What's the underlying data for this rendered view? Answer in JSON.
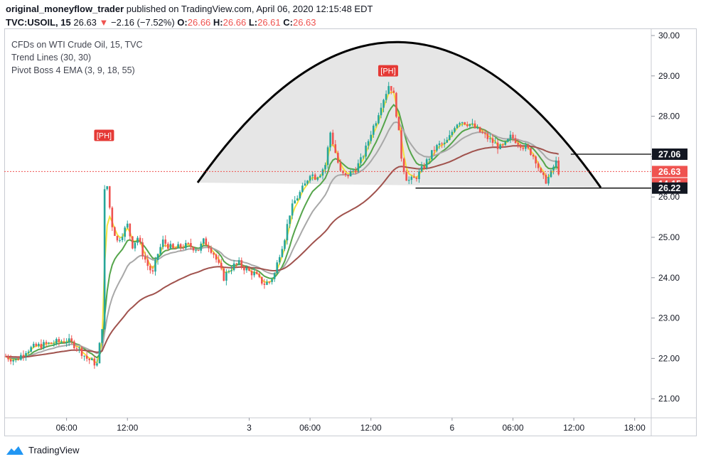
{
  "header": {
    "author": "original_moneyflow_trader",
    "published_text": "published on TradingView.com, April 06, 2020 12:15:48 EDT",
    "symbol": "TVC:USOIL, 15",
    "last": "26.63",
    "change_arrow": "▼",
    "change": "−2.16 (−7.52%)",
    "o_label": "O:",
    "o": "26.66",
    "h_label": "H:",
    "h": "26.66",
    "l_label": "L:",
    "l": "26.61",
    "c_label": "C:",
    "c": "26.63"
  },
  "legend": {
    "title": "CFDs on WTI Crude Oil, 15, TVC",
    "study1": "Trend Lines (30, 30)",
    "study2": "Pivot Boss 4 EMA (3, 9, 18, 55)"
  },
  "footer": {
    "brand": "TradingView"
  },
  "colors": {
    "up": "#26a69a",
    "down": "#ef5350",
    "ema3": "#f5e23b",
    "ema9": "#55a54b",
    "ema18": "#a8a8a8",
    "ema55": "#a0524d",
    "dome_fill": "#e6e6e6",
    "price_line": "#ef5350"
  },
  "chart_data": {
    "type": "candlestick",
    "title": "CFDs on WTI Crude Oil, 15, TVC",
    "ylim": [
      20.6,
      30.2
    ],
    "y_ticks": [
      "30.00",
      "29.00",
      "28.00",
      "27.00",
      "26.00",
      "25.00",
      "24.00",
      "23.00",
      "22.00",
      "21.00"
    ],
    "x_ticks": [
      "06:00",
      "12:00",
      "3",
      "06:00",
      "12:00",
      "6",
      "06:00",
      "12:00",
      "18:00"
    ],
    "x_tick_positions_hours": [
      6,
      12,
      24,
      30,
      36,
      44,
      50,
      56,
      62
    ],
    "price_labels": [
      {
        "text": "27.06",
        "value": 27.06,
        "style": "black"
      },
      {
        "text": "26.63",
        "value": 26.63,
        "style": "red"
      },
      {
        "text": "14:15",
        "value": 26.33,
        "style": "red"
      },
      {
        "text": "26.22",
        "value": 26.22,
        "style": "black"
      }
    ],
    "pivot_labels": [
      {
        "text": "[PH]",
        "hour": 9.7,
        "value": 27.35
      },
      {
        "text": "[PH]",
        "hour": 37.7,
        "value": 28.95
      }
    ],
    "levels": [
      {
        "name": "resistance",
        "value": 27.06,
        "from_hour": 55.7
      },
      {
        "name": "support",
        "value": 26.22,
        "from_hour": 40.4
      }
    ],
    "close_path": [
      [
        0,
        22.05
      ],
      [
        1,
        21.95
      ],
      [
        2,
        22.2
      ],
      [
        3,
        22.3
      ],
      [
        4,
        22.35
      ],
      [
        5,
        22.4
      ],
      [
        6,
        22.45
      ],
      [
        7,
        22.3
      ],
      [
        8,
        22.0
      ],
      [
        9,
        21.85
      ],
      [
        9.5,
        22.8
      ],
      [
        9.8,
        26.8
      ],
      [
        10.1,
        26.0
      ],
      [
        10.5,
        25.3
      ],
      [
        11,
        24.9
      ],
      [
        11.5,
        25.1
      ],
      [
        12,
        25.3
      ],
      [
        12.5,
        24.8
      ],
      [
        13,
        25.0
      ],
      [
        13.5,
        24.6
      ],
      [
        14,
        24.3
      ],
      [
        14.5,
        24.1
      ],
      [
        15,
        24.6
      ],
      [
        15.5,
        24.9
      ],
      [
        16,
        24.8
      ],
      [
        16.5,
        24.7
      ],
      [
        17,
        24.75
      ],
      [
        18,
        24.8
      ],
      [
        19,
        24.7
      ],
      [
        19.5,
        24.9
      ],
      [
        20,
        24.8
      ],
      [
        20.5,
        24.6
      ],
      [
        21,
        24.3
      ],
      [
        21.5,
        24.0
      ],
      [
        22,
        24.2
      ],
      [
        22.5,
        24.3
      ],
      [
        23,
        24.35
      ],
      [
        23.5,
        24.25
      ],
      [
        24,
        24.15
      ],
      [
        24.5,
        24.1
      ],
      [
        25,
        23.95
      ],
      [
        25.5,
        23.85
      ],
      [
        26,
        23.9
      ],
      [
        26.5,
        24.1
      ],
      [
        27,
        24.6
      ],
      [
        27.5,
        25.0
      ],
      [
        28,
        25.6
      ],
      [
        28.5,
        25.9
      ],
      [
        29,
        26.1
      ],
      [
        29.5,
        26.3
      ],
      [
        30,
        26.6
      ],
      [
        30.5,
        26.5
      ],
      [
        31,
        26.6
      ],
      [
        31.5,
        26.8
      ],
      [
        32,
        27.6
      ],
      [
        32.3,
        27.3
      ],
      [
        32.6,
        27.0
      ],
      [
        33,
        26.6
      ],
      [
        33.5,
        26.5
      ],
      [
        34,
        26.6
      ],
      [
        34.5,
        26.7
      ],
      [
        35,
        26.9
      ],
      [
        35.5,
        27.2
      ],
      [
        36,
        27.6
      ],
      [
        36.5,
        27.9
      ],
      [
        37,
        28.3
      ],
      [
        37.5,
        28.6
      ],
      [
        37.8,
        28.8
      ],
      [
        38.2,
        28.6
      ],
      [
        38.6,
        27.9
      ],
      [
        39,
        27.0
      ],
      [
        39.4,
        26.5
      ],
      [
        39.8,
        26.4
      ],
      [
        40.3,
        26.45
      ],
      [
        40.8,
        26.6
      ],
      [
        41.3,
        26.8
      ],
      [
        41.8,
        27.0
      ],
      [
        42.3,
        27.2
      ],
      [
        42.8,
        27.3
      ],
      [
        43.3,
        27.3
      ],
      [
        43.8,
        27.5
      ],
      [
        44.3,
        27.8
      ],
      [
        44.8,
        27.9
      ],
      [
        45.3,
        27.85
      ],
      [
        45.8,
        27.8
      ],
      [
        46.3,
        27.7
      ],
      [
        46.8,
        27.6
      ],
      [
        47.3,
        27.5
      ],
      [
        47.8,
        27.4
      ],
      [
        48.3,
        27.3
      ],
      [
        48.8,
        27.2
      ],
      [
        49.3,
        27.3
      ],
      [
        49.8,
        27.5
      ],
      [
        50.3,
        27.4
      ],
      [
        50.8,
        27.3
      ],
      [
        51.3,
        27.2
      ],
      [
        51.8,
        27.1
      ],
      [
        52.3,
        26.9
      ],
      [
        52.8,
        26.5
      ],
      [
        53.3,
        26.4
      ],
      [
        53.8,
        26.6
      ],
      [
        54.2,
        26.9
      ],
      [
        54.5,
        26.63
      ]
    ]
  }
}
